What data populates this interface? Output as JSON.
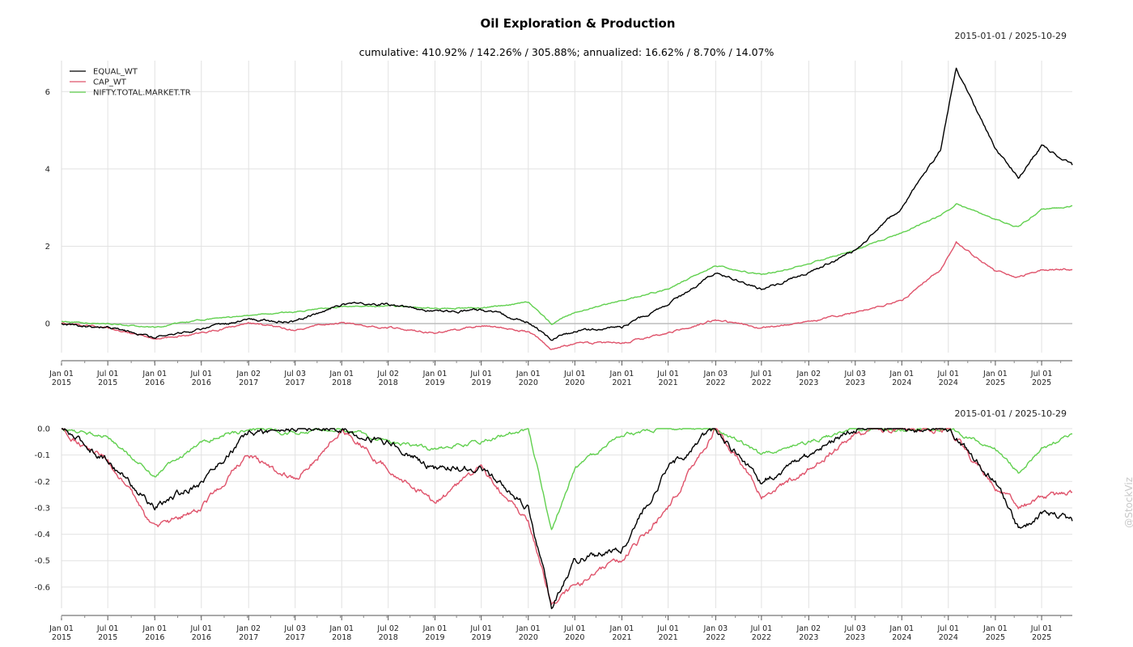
{
  "title": "Oil Exploration & Production",
  "subtitle": "cumulative: 410.92% / 142.26% / 305.88%; annualized: 16.62% / 8.70% / 14.07%",
  "date_range": "2015-01-01 / 2025-10-29",
  "watermark": "@StockViz",
  "colors": {
    "EQUAL_WT": "#000000",
    "CAP_WT": "#df536b",
    "NIFTY.TOTAL.MARKET.TR": "#61d04f"
  },
  "chart_data": [
    {
      "type": "line",
      "legend_position": "top-left",
      "grid": true,
      "ylim": [
        -0.75,
        6.8
      ],
      "yticks": [
        "0",
        "2",
        "4",
        "6"
      ],
      "x_tick_labels": [
        [
          "Jan 01",
          "2015"
        ],
        [
          "Jul 01",
          "2015"
        ],
        [
          "Jan 01",
          "2016"
        ],
        [
          "Jul 01",
          "2016"
        ],
        [
          "Jan 02",
          "2017"
        ],
        [
          "Jul 03",
          "2017"
        ],
        [
          "Jan 01",
          "2018"
        ],
        [
          "Jul 02",
          "2018"
        ],
        [
          "Jan 01",
          "2019"
        ],
        [
          "Jul 01",
          "2019"
        ],
        [
          "Jan 01",
          "2020"
        ],
        [
          "Jul 01",
          "2020"
        ],
        [
          "Jan 01",
          "2021"
        ],
        [
          "Jul 01",
          "2021"
        ],
        [
          "Jan 03",
          "2022"
        ],
        [
          "Jul 01",
          "2022"
        ],
        [
          "Jan 02",
          "2023"
        ],
        [
          "Jul 03",
          "2023"
        ],
        [
          "Jan 01",
          "2024"
        ],
        [
          "Jul 01",
          "2024"
        ],
        [
          "Jan 01",
          "2025"
        ],
        [
          "Jul 01",
          "2025"
        ]
      ],
      "x": [
        "2015-01",
        "2015-07",
        "2016-01",
        "2016-07",
        "2017-01",
        "2017-07",
        "2018-01",
        "2018-07",
        "2019-01",
        "2019-07",
        "2020-01",
        "2020-04",
        "2020-07",
        "2021-01",
        "2021-07",
        "2022-01",
        "2022-07",
        "2023-01",
        "2023-07",
        "2024-01",
        "2024-06",
        "2024-08",
        "2025-01",
        "2025-04",
        "2025-07",
        "2025-10"
      ],
      "series": [
        {
          "name": "EQUAL_WT",
          "values": [
            0,
            -0.1,
            -0.35,
            -0.15,
            0.1,
            0.05,
            0.5,
            0.5,
            0.3,
            0.35,
            0.05,
            -0.4,
            -0.2,
            -0.1,
            0.5,
            1.3,
            0.9,
            1.3,
            1.9,
            3.0,
            4.5,
            6.6,
            4.5,
            3.8,
            4.6,
            4.1
          ]
        },
        {
          "name": "CAP_WT",
          "values": [
            0,
            -0.1,
            -0.38,
            -0.25,
            0.0,
            -0.15,
            0.02,
            -0.1,
            -0.25,
            -0.05,
            -0.2,
            -0.65,
            -0.5,
            -0.5,
            -0.25,
            0.1,
            -0.1,
            0.05,
            0.3,
            0.6,
            1.4,
            2.1,
            1.35,
            1.2,
            1.4,
            1.4
          ]
        },
        {
          "name": "NIFTY.TOTAL.MARKET.TR",
          "values": [
            0.05,
            0.0,
            -0.1,
            0.1,
            0.2,
            0.3,
            0.45,
            0.45,
            0.4,
            0.4,
            0.55,
            0.0,
            0.3,
            0.6,
            0.9,
            1.5,
            1.25,
            1.55,
            1.9,
            2.35,
            2.8,
            3.1,
            2.7,
            2.5,
            2.95,
            3.05
          ]
        }
      ]
    },
    {
      "type": "line",
      "grid": true,
      "ylim": [
        -0.68,
        0.0
      ],
      "yticks": [
        "0.0",
        "-0.1",
        "-0.2",
        "-0.3",
        "-0.4",
        "-0.5",
        "-0.6"
      ],
      "x_tick_labels": [
        [
          "Jan 01",
          "2015"
        ],
        [
          "Jul 01",
          "2015"
        ],
        [
          "Jan 01",
          "2016"
        ],
        [
          "Jul 01",
          "2016"
        ],
        [
          "Jan 02",
          "2017"
        ],
        [
          "Jul 03",
          "2017"
        ],
        [
          "Jan 01",
          "2018"
        ],
        [
          "Jul 02",
          "2018"
        ],
        [
          "Jan 01",
          "2019"
        ],
        [
          "Jul 01",
          "2019"
        ],
        [
          "Jan 01",
          "2020"
        ],
        [
          "Jul 01",
          "2020"
        ],
        [
          "Jan 01",
          "2021"
        ],
        [
          "Jul 01",
          "2021"
        ],
        [
          "Jan 03",
          "2022"
        ],
        [
          "Jul 01",
          "2022"
        ],
        [
          "Jan 02",
          "2023"
        ],
        [
          "Jul 03",
          "2023"
        ],
        [
          "Jan 01",
          "2024"
        ],
        [
          "Jul 01",
          "2024"
        ],
        [
          "Jan 01",
          "2025"
        ],
        [
          "Jul 01",
          "2025"
        ]
      ],
      "x": [
        "2015-01",
        "2015-07",
        "2016-01",
        "2016-07",
        "2017-01",
        "2017-07",
        "2018-01",
        "2018-07",
        "2019-01",
        "2019-07",
        "2020-01",
        "2020-04",
        "2020-07",
        "2021-01",
        "2021-07",
        "2022-01",
        "2022-07",
        "2023-01",
        "2023-07",
        "2024-01",
        "2024-07",
        "2025-01",
        "2025-04",
        "2025-07",
        "2025-10"
      ],
      "series": [
        {
          "name": "EQUAL_WT",
          "values": [
            0.0,
            -0.12,
            -0.3,
            -0.2,
            -0.02,
            0.0,
            0.0,
            -0.05,
            -0.15,
            -0.15,
            -0.3,
            -0.67,
            -0.5,
            -0.45,
            -0.15,
            0.0,
            -0.2,
            -0.1,
            0.0,
            0.0,
            0.0,
            -0.2,
            -0.38,
            -0.32,
            -0.35
          ]
        },
        {
          "name": "CAP_WT",
          "values": [
            0.0,
            -0.12,
            -0.38,
            -0.3,
            -0.1,
            -0.2,
            0.0,
            -0.15,
            -0.28,
            -0.15,
            -0.35,
            -0.66,
            -0.6,
            -0.5,
            -0.3,
            0.0,
            -0.25,
            -0.15,
            -0.02,
            0.0,
            0.0,
            -0.22,
            -0.3,
            -0.27,
            -0.24
          ]
        },
        {
          "name": "NIFTY.TOTAL.MARKET.TR",
          "values": [
            0.0,
            -0.03,
            -0.18,
            -0.05,
            0.0,
            -0.02,
            0.0,
            -0.05,
            -0.08,
            -0.05,
            0.0,
            -0.38,
            -0.15,
            -0.02,
            0.0,
            0.0,
            -0.1,
            -0.05,
            0.0,
            0.0,
            0.0,
            -0.08,
            -0.16,
            -0.08,
            -0.02
          ]
        }
      ]
    }
  ]
}
